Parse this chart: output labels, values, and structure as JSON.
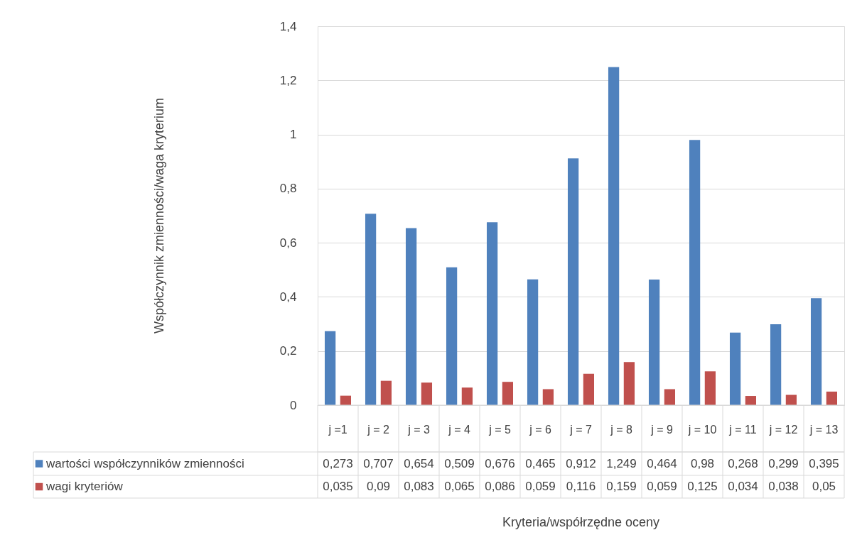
{
  "chart_data": {
    "type": "bar",
    "annotations": [
      "Współczynnik zmienności/waga kryterium",
      "Kryteria/współrzędne oceny"
    ],
    "categories": [
      "j =1",
      "j = 2",
      "j = 3",
      "j = 4",
      "j = 5",
      "j = 6",
      "j = 7",
      "j = 8",
      "j = 9",
      "j = 10",
      "j = 11",
      "j = 12",
      "j = 13"
    ],
    "series": [
      {
        "name": "wartości współczynników zmienności",
        "color": "#4f81bd",
        "values": [
          0.273,
          0.707,
          0.654,
          0.509,
          0.676,
          0.465,
          0.912,
          1.249,
          0.464,
          0.98,
          0.268,
          0.299,
          0.395
        ],
        "value_labels": [
          "0,273",
          "0,707",
          "0,654",
          "0,509",
          "0,676",
          "0,465",
          "0,912",
          "1,249",
          "0,464",
          "0,98",
          "0,268",
          "0,299",
          "0,395"
        ]
      },
      {
        "name": "wagi kryteriów",
        "color": "#c0504d",
        "values": [
          0.035,
          0.09,
          0.083,
          0.065,
          0.086,
          0.059,
          0.116,
          0.159,
          0.059,
          0.125,
          0.034,
          0.038,
          0.05
        ],
        "value_labels": [
          "0,035",
          "0,09",
          "0,083",
          "0,065",
          "0,086",
          "0,059",
          "0,116",
          "0,159",
          "0,059",
          "0,125",
          "0,034",
          "0,038",
          "0,05"
        ]
      }
    ],
    "ylim": [
      0,
      1.4
    ],
    "yticks": [
      0,
      {
        "value": 0.2,
        "label": "0,2"
      },
      {
        "value": 0.4,
        "label": "0,4"
      },
      {
        "value": 0.6,
        "label": "0,6"
      },
      {
        "value": 0.8,
        "label": "0,8"
      },
      1,
      {
        "value": 1.2,
        "label": "1,2"
      },
      {
        "value": 1.4,
        "label": "1,4"
      }
    ],
    "grid": true,
    "legend": "bottom left"
  }
}
